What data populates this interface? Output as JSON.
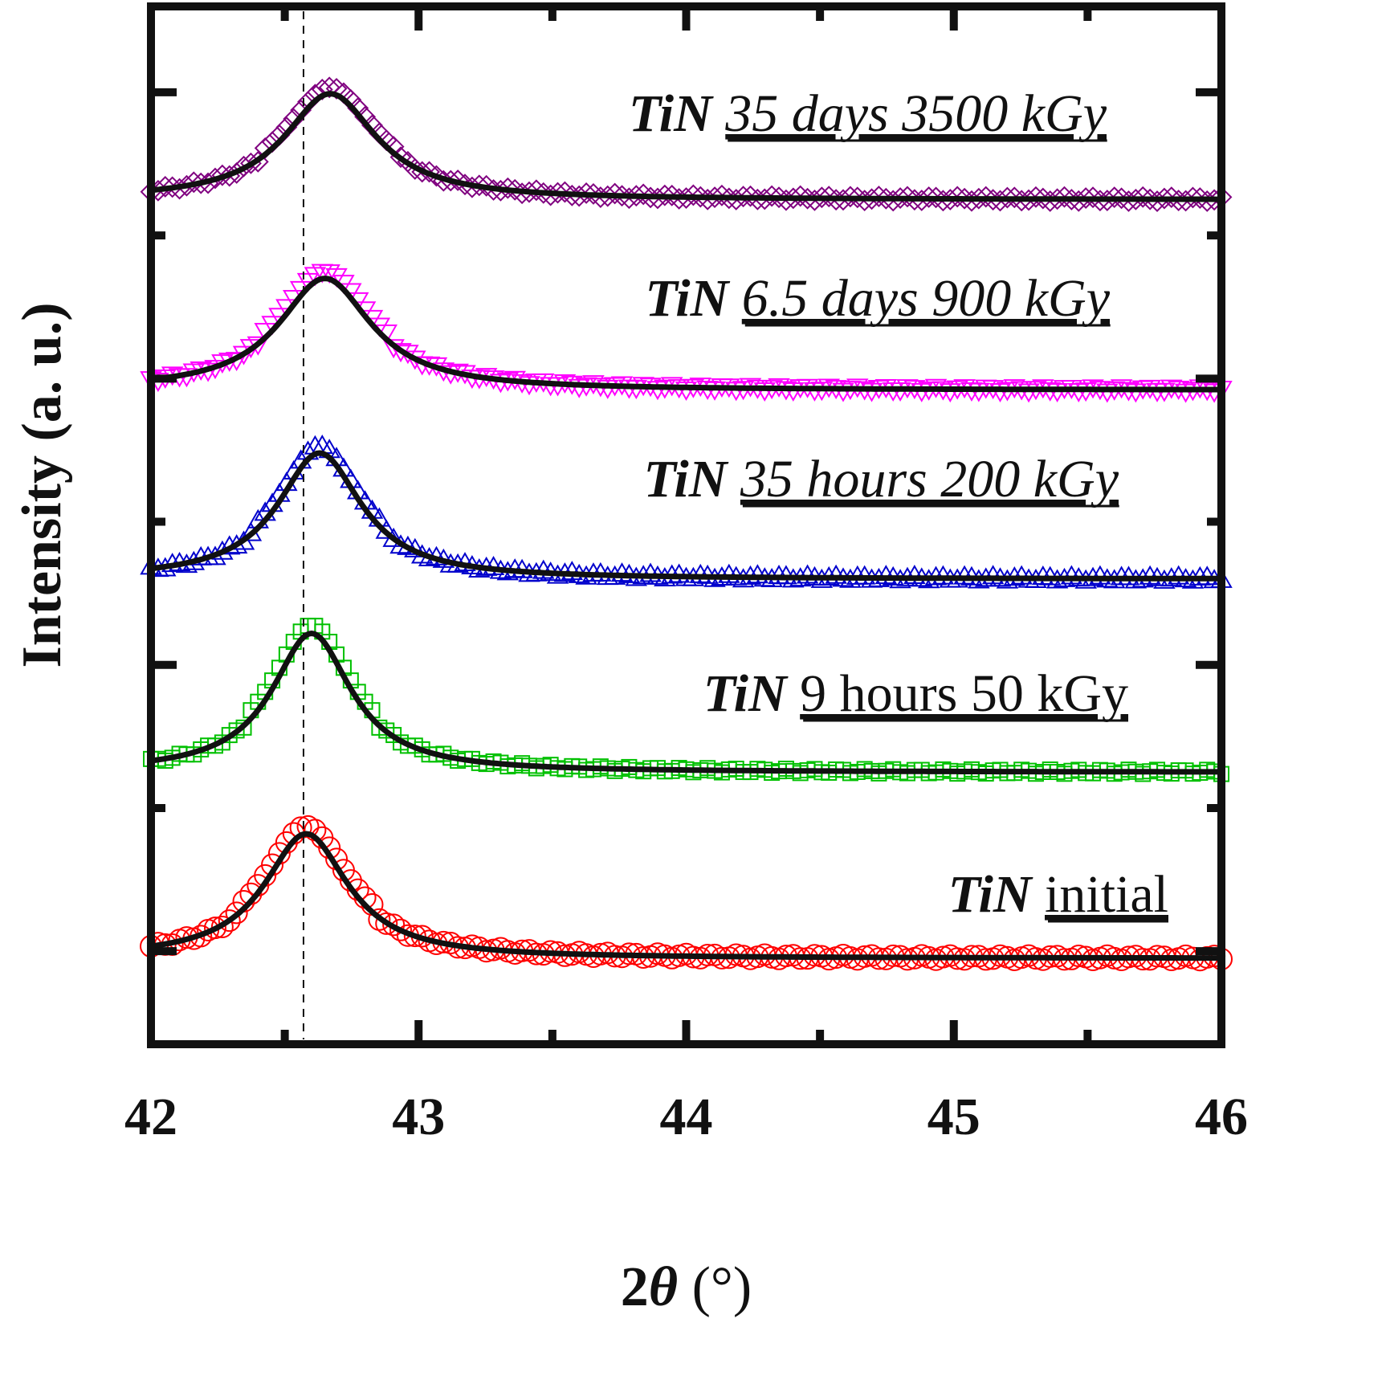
{
  "chart_data": {
    "type": "line",
    "title": "",
    "xlabel": "2θ (°)",
    "xlabel_parts": {
      "prefix": "2",
      "symbol": "θ",
      "suffix": " (°)"
    },
    "ylabel": "Intensity (a. u.)",
    "xlim": [
      42,
      46
    ],
    "ylim": [
      0,
      7.25
    ],
    "x_ticks": [
      "42",
      "43",
      "44",
      "45",
      "46"
    ],
    "x_tick_values": [
      42,
      43,
      44,
      45,
      46
    ],
    "reference_line_x": 42.57,
    "grid": false,
    "legend": "inline-labels-right",
    "fit_color": "#111111",
    "series": [
      {
        "name": "TiN initial",
        "compound": "TiN",
        "condition": "initial",
        "condition_style": "normal",
        "marker": "circle",
        "color": "#ff0000",
        "baseline": 0.6,
        "peak_height": 0.87,
        "peak_center": 42.58,
        "fwhm": 0.38
      },
      {
        "name": "TiN 9 hours 50 kGy",
        "compound": "TiN",
        "condition": "9 hours 50 kGy",
        "condition_style": "normal",
        "marker": "square",
        "color": "#00c000",
        "baseline": 1.9,
        "peak_height": 0.97,
        "peak_center": 42.6,
        "fwhm": 0.36
      },
      {
        "name": "TiN 35 hours 200 kGy",
        "compound": "TiN",
        "condition": "35 hours 200 kGy",
        "condition_style": "italic",
        "marker": "triangle-up",
        "color": "#0000cc",
        "baseline": 3.25,
        "peak_height": 0.88,
        "peak_center": 42.63,
        "fwhm": 0.38
      },
      {
        "name": "TiN 6.5 days 900 kGy",
        "compound": "TiN",
        "condition": "6.5 days 900 kGy",
        "condition_style": "italic",
        "marker": "triangle-down",
        "color": "#ff00ff",
        "baseline": 4.57,
        "peak_height": 0.78,
        "peak_center": 42.65,
        "fwhm": 0.42
      },
      {
        "name": "TiN 35 days 3500 kGy",
        "compound": "TiN",
        "condition": "35 days 3500 kGy",
        "condition_style": "italic",
        "marker": "diamond",
        "color": "#800080",
        "baseline": 5.9,
        "peak_height": 0.74,
        "peak_center": 42.67,
        "fwhm": 0.42
      }
    ]
  }
}
